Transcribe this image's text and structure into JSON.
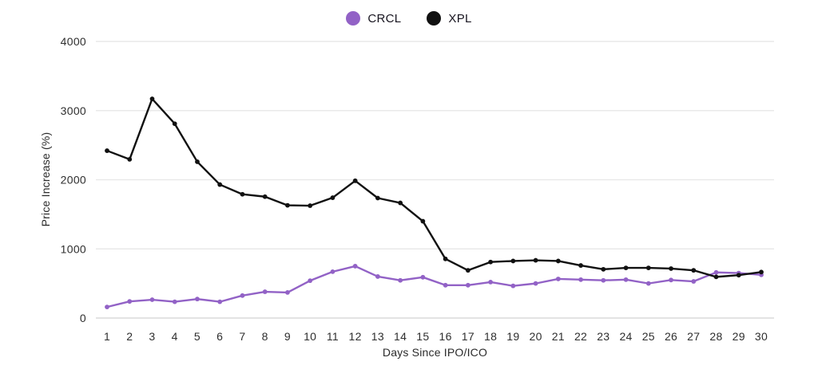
{
  "chart_data": {
    "type": "line",
    "x": [
      1,
      2,
      3,
      4,
      5,
      6,
      7,
      8,
      9,
      10,
      11,
      12,
      13,
      14,
      15,
      16,
      17,
      18,
      19,
      20,
      21,
      22,
      23,
      24,
      25,
      26,
      27,
      28,
      29,
      30
    ],
    "series": [
      {
        "name": "CRCL",
        "color": "#9262c6",
        "values": [
          160,
          240,
          265,
          235,
          275,
          235,
          325,
          380,
          370,
          540,
          670,
          750,
          600,
          545,
          590,
          475,
          475,
          520,
          465,
          500,
          565,
          555,
          545,
          555,
          500,
          550,
          530,
          660,
          650,
          625
        ]
      },
      {
        "name": "XPL",
        "color": "#111111",
        "values": [
          2420,
          2295,
          3170,
          2810,
          2260,
          1930,
          1790,
          1755,
          1630,
          1625,
          1740,
          1985,
          1735,
          1665,
          1400,
          855,
          690,
          810,
          825,
          835,
          825,
          760,
          705,
          725,
          725,
          715,
          690,
          595,
          620,
          665
        ]
      }
    ],
    "title": "",
    "xlabel": "Days Since IPO/ICO",
    "ylabel": "Price Increase (%)",
    "ylim": [
      0,
      4000
    ],
    "yticks": [
      0,
      1000,
      2000,
      3000,
      4000
    ],
    "grid": "horizontal",
    "legend_position": "top-center",
    "colors": {
      "gridline": "#e9e9e9",
      "baseline": "#dadada",
      "tick_text": "#2e2e2e",
      "background": "#ffffff"
    }
  }
}
